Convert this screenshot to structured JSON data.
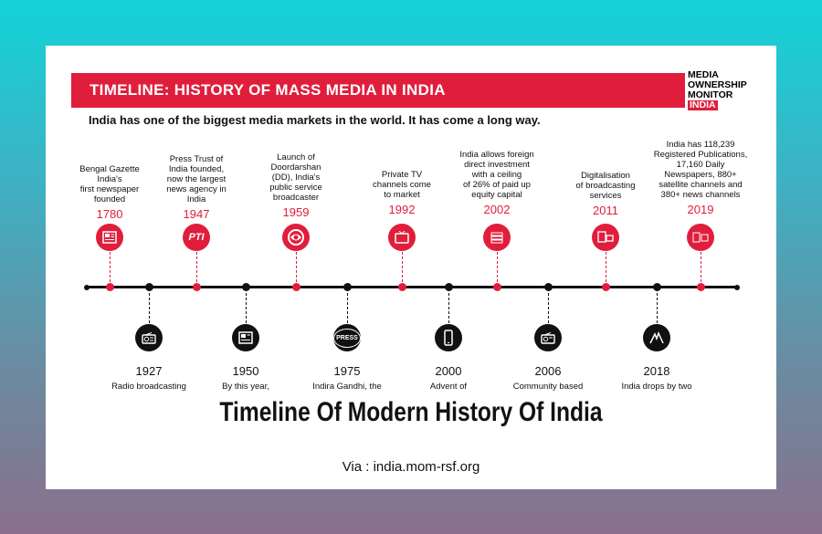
{
  "banner": {
    "title": "TIMELINE: HISTORY OF MASS MEDIA IN INDIA"
  },
  "logo": {
    "line1": "MEDIA",
    "line2": "OWNERSHIP",
    "line3": "MONITOR",
    "line4": "INDIA"
  },
  "subtitle": "India has one of the biggest media markets in the world. It has come a long way.",
  "events_top": [
    {
      "year": "1780",
      "lines": [
        "Bengal Gazette",
        "India's",
        "first newspaper",
        "founded"
      ],
      "icon": "newspaper-icon"
    },
    {
      "year": "1947",
      "lines": [
        "Press Trust of",
        "India founded,",
        "now the largest",
        "news agency in",
        "India"
      ],
      "icon": "pti-logo-icon",
      "icon_text": "PTI"
    },
    {
      "year": "1959",
      "lines": [
        "Launch of",
        "Doordarshan",
        "(DD), India's",
        "public service",
        "broadcaster"
      ],
      "icon": "doordarshan-logo-icon"
    },
    {
      "year": "1992",
      "lines": [
        "Private TV",
        "channels come",
        "to market"
      ],
      "icon": "tv-icon"
    },
    {
      "year": "2002",
      "lines": [
        "India allows foreign",
        "direct investment",
        "with a ceiling",
        "of 26% of paid up",
        "equity capital"
      ],
      "icon": "money-stack-icon"
    },
    {
      "year": "2011",
      "lines": [
        "Digitalisation",
        "of broadcasting",
        "services"
      ],
      "icon": "digital-devices-icon"
    },
    {
      "year": "2019",
      "lines": [
        "India has 118,239",
        "Registered Publications,",
        "17,160 Daily",
        "Newspapers, 880+",
        "satellite channels and",
        "380+ news channels"
      ],
      "icon": "newspaper-tv-icon"
    }
  ],
  "events_bottom": [
    {
      "year": "1927",
      "text": "Radio broadcasting",
      "icon": "radio-icon"
    },
    {
      "year": "1950",
      "text": "By this year,",
      "icon": "newspaper-icon"
    },
    {
      "year": "1975",
      "text": "Indira Gandhi, the",
      "icon": "press-banned-icon",
      "icon_text": "PRESS"
    },
    {
      "year": "2000",
      "text": "Advent of",
      "icon": "mobile-phone-icon"
    },
    {
      "year": "2006",
      "text": "Community based",
      "icon": "radio-icon"
    },
    {
      "year": "2018",
      "text": "India drops by two",
      "icon": "handcuffed-hands-icon"
    }
  ],
  "caption": "Timeline Of Modern History Of India",
  "via": "Via : india.mom-rsf.org",
  "colors": {
    "accent": "#e01e3c",
    "dark": "#111111"
  }
}
